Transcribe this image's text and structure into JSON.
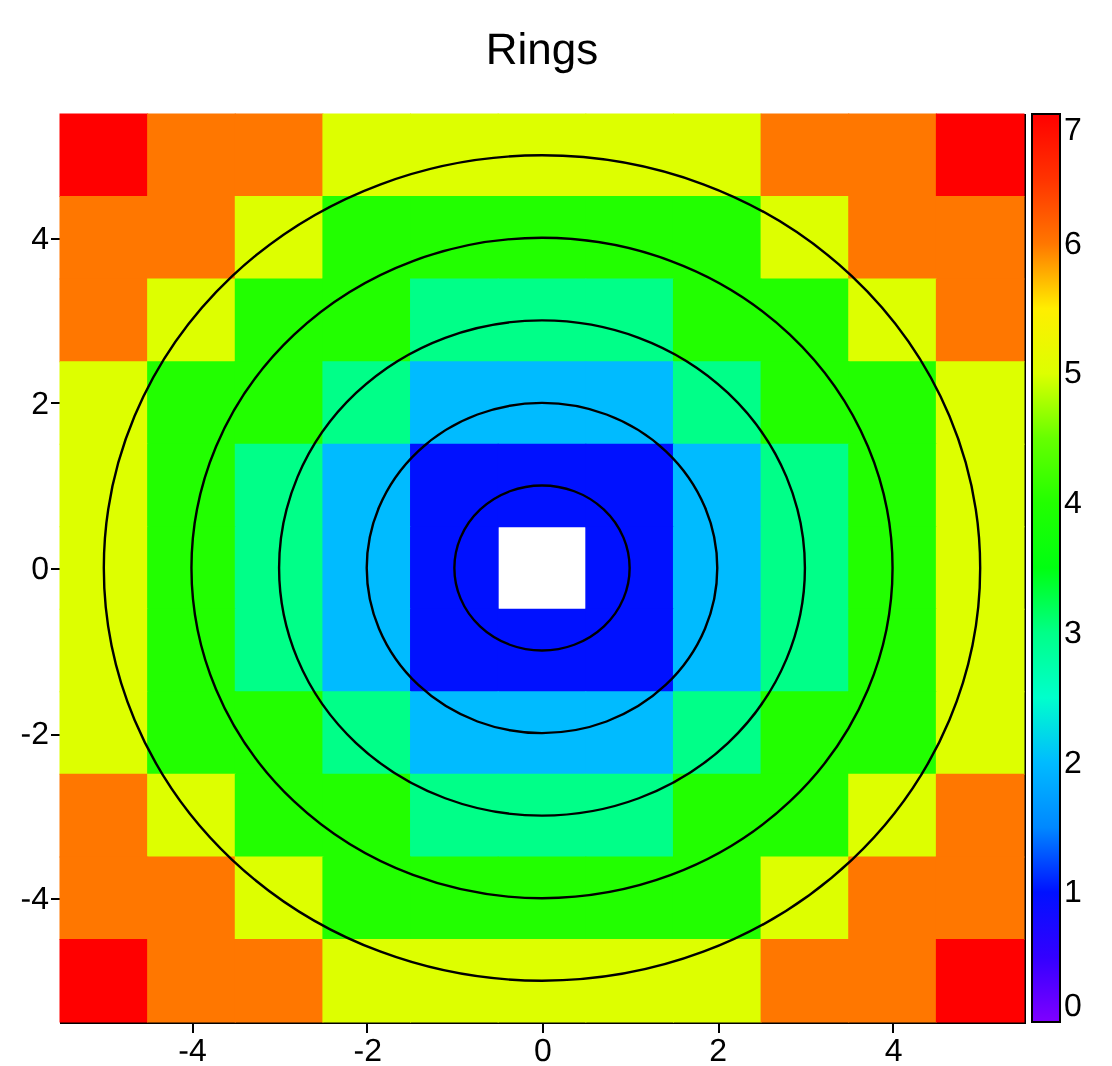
{
  "chart_data": {
    "type": "heatmap",
    "title": "Rings",
    "x": [
      -5,
      -4,
      -3,
      -2,
      -1,
      0,
      1,
      2,
      3,
      4,
      5
    ],
    "cells": [
      [
        7,
        6,
        6,
        5,
        5,
        5,
        5,
        5,
        6,
        6,
        7
      ],
      [
        6,
        6,
        5,
        4,
        4,
        4,
        4,
        4,
        5,
        6,
        6
      ],
      [
        6,
        5,
        4,
        4,
        3,
        3,
        3,
        4,
        4,
        5,
        6
      ],
      [
        5,
        4,
        4,
        3,
        2,
        2,
        2,
        3,
        4,
        4,
        5
      ],
      [
        5,
        4,
        3,
        2,
        1,
        1,
        1,
        2,
        3,
        4,
        5
      ],
      [
        5,
        4,
        3,
        2,
        1,
        null,
        1,
        2,
        3,
        4,
        5
      ],
      [
        5,
        4,
        3,
        2,
        1,
        1,
        1,
        2,
        3,
        4,
        5
      ],
      [
        5,
        4,
        4,
        3,
        2,
        2,
        2,
        3,
        4,
        4,
        5
      ],
      [
        6,
        5,
        4,
        4,
        3,
        3,
        3,
        4,
        4,
        5,
        6
      ],
      [
        6,
        6,
        5,
        4,
        4,
        4,
        4,
        4,
        5,
        6,
        6
      ],
      [
        7,
        6,
        6,
        5,
        5,
        5,
        5,
        5,
        6,
        6,
        7
      ]
    ],
    "clim": [
      0,
      7
    ],
    "cticks": [
      0,
      1,
      2,
      3,
      4,
      5,
      6,
      7
    ],
    "xlim": [
      -5.5,
      5.5
    ],
    "xticks": [
      -4,
      -2,
      0,
      2,
      4
    ],
    "ylim": [
      -5.5,
      5.5
    ],
    "yticks": [
      -4,
      -2,
      0,
      2,
      4
    ]
  }
}
